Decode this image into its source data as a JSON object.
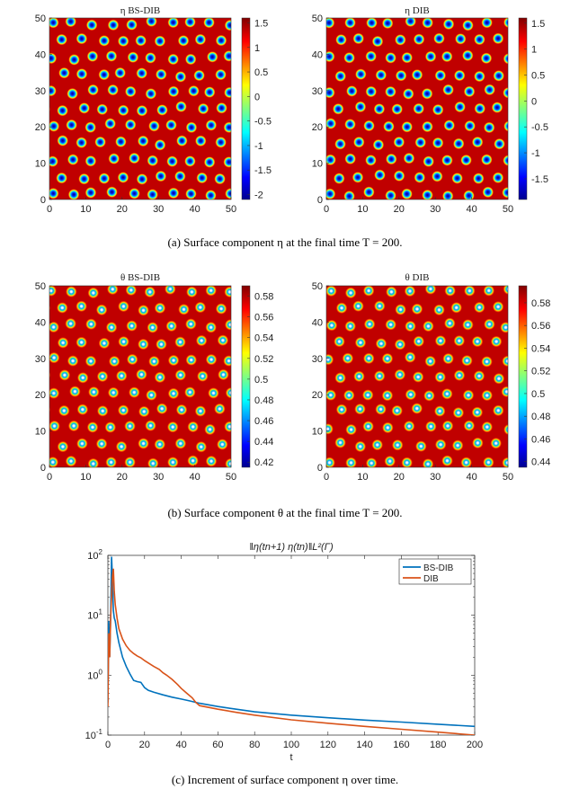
{
  "heatmaps": [
    {
      "id": "eta-bsdib",
      "title": "η BS-DIB",
      "colorbar_ticks": [
        "1.5",
        "1",
        "0.5",
        "0",
        "-0.5",
        "-1",
        "-1.5",
        "-2"
      ],
      "colorbar_range": [
        -2.1,
        1.6
      ],
      "spot_style": "eta"
    },
    {
      "id": "eta-dib",
      "title": "η DIB",
      "colorbar_ticks": [
        "1.5",
        "1",
        "0.5",
        "0",
        "-0.5",
        "-1",
        "-1.5"
      ],
      "colorbar_range": [
        -1.9,
        1.6
      ],
      "spot_style": "eta"
    },
    {
      "id": "theta-bsdib",
      "title": "θ BS-DIB",
      "colorbar_ticks": [
        "0.58",
        "0.56",
        "0.54",
        "0.52",
        "0.5",
        "0.48",
        "0.46",
        "0.44",
        "0.42"
      ],
      "colorbar_range": [
        0.415,
        0.59
      ],
      "spot_style": "theta"
    },
    {
      "id": "theta-dib",
      "title": "θ DIB",
      "colorbar_ticks": [
        "0.58",
        "0.56",
        "0.54",
        "0.52",
        "0.5",
        "0.48",
        "0.46",
        "0.44"
      ],
      "colorbar_range": [
        0.435,
        0.595
      ],
      "spot_style": "theta"
    }
  ],
  "heatmap_axes": {
    "x_ticks": [
      "0",
      "10",
      "20",
      "30",
      "40",
      "50"
    ],
    "y_ticks": [
      "0",
      "10",
      "20",
      "30",
      "40",
      "50"
    ]
  },
  "captions": {
    "a": "(a)  Surface component η at the final time T = 200.",
    "b": "(b)  Surface component θ at the final time T = 200.",
    "c": "(c)  Increment of surface component η over time."
  },
  "chart_data": {
    "type": "line",
    "title": "‖η(tn+1)    η(tn)‖L²(Γ)",
    "xlabel": "t",
    "ylabel": "",
    "xlim": [
      0,
      200
    ],
    "ylim": [
      0.1,
      100
    ],
    "yscale": "log",
    "x_ticks": [
      "0",
      "20",
      "40",
      "60",
      "80",
      "100",
      "120",
      "140",
      "160",
      "180",
      "200"
    ],
    "y_ticks": [
      "10-1",
      "100",
      "101",
      "102"
    ],
    "legend_position": "top-right",
    "series": [
      {
        "name": "BS-DIB",
        "color": "#0072BD",
        "x": [
          0,
          0.5,
          1,
          1.5,
          2,
          2.5,
          3,
          3.5,
          4,
          5,
          6,
          8,
          10,
          12,
          14,
          16,
          18,
          20,
          22,
          25,
          30,
          35,
          40,
          45,
          50,
          60,
          70,
          80,
          100,
          120,
          140,
          160,
          180,
          200
        ],
        "y": [
          0.35,
          8,
          2,
          10,
          95,
          40,
          12,
          9,
          8,
          5,
          3.5,
          2,
          1.4,
          1.05,
          0.82,
          0.78,
          0.76,
          0.62,
          0.56,
          0.52,
          0.47,
          0.43,
          0.4,
          0.37,
          0.34,
          0.3,
          0.27,
          0.245,
          0.215,
          0.195,
          0.178,
          0.165,
          0.152,
          0.14
        ]
      },
      {
        "name": "DIB",
        "color": "#D95319",
        "x": [
          0,
          0.5,
          1,
          1.5,
          2,
          2.5,
          3,
          3.5,
          4,
          5,
          6,
          8,
          10,
          12,
          14,
          16,
          18,
          20,
          22,
          25,
          28,
          30,
          32,
          35,
          38,
          40,
          43,
          46,
          48,
          50,
          60,
          70,
          80,
          100,
          120,
          140,
          160,
          180,
          200
        ],
        "y": [
          0.3,
          5,
          2,
          9,
          20,
          45,
          60,
          25,
          15,
          9,
          6,
          4,
          3.1,
          2.6,
          2.3,
          2.1,
          1.95,
          1.75,
          1.6,
          1.4,
          1.25,
          1.1,
          1.0,
          0.85,
          0.7,
          0.6,
          0.5,
          0.42,
          0.35,
          0.31,
          0.27,
          0.24,
          0.215,
          0.18,
          0.158,
          0.14,
          0.125,
          0.112,
          0.1
        ]
      }
    ]
  }
}
